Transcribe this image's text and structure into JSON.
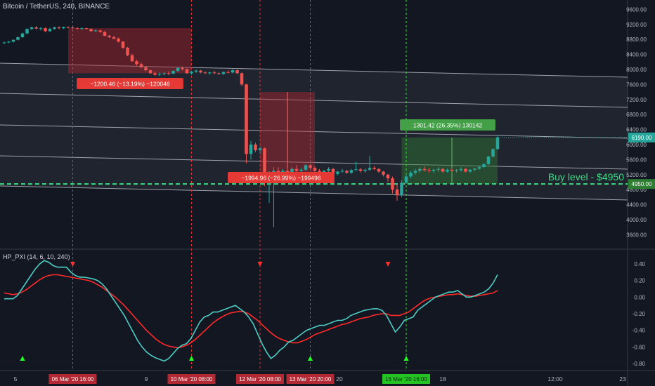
{
  "header": {
    "title": "Bitcoin / TetherUS, 240, BINANCE"
  },
  "indicator": {
    "label": "HP_PXI (14, 6, 10, 240)"
  },
  "price_axis": {
    "ticks": [
      "9600.00",
      "9200.00",
      "8800.00",
      "8400.00",
      "8000.00",
      "7600.00",
      "7200.00",
      "6800.00",
      "6400.00",
      "6000.00",
      "5600.00",
      "5200.00",
      "4800.00",
      "4400.00",
      "4000.00",
      "3600.00"
    ],
    "current_label": "6190.00",
    "buy_label": "4950.00"
  },
  "osc_axis": {
    "ticks": [
      "0.40",
      "0.20",
      "0.00",
      "-0.20",
      "-0.40",
      "-0.60",
      "-0.80"
    ]
  },
  "time_axis": {
    "ticks": [
      "5",
      "9",
      "20",
      "18",
      "12:00",
      "23"
    ],
    "markers": [
      {
        "label": "06 Mar '20   16:00",
        "color": "#b22833"
      },
      {
        "label": "10 Mar '20   08:00",
        "color": "#b22833"
      },
      {
        "label": "12 Mar '20   08:00",
        "color": "#b22833"
      },
      {
        "label": "13 Mar '20   20:00",
        "color": "#b22833"
      },
      {
        "label": "16 Mar '20   16:00",
        "color": "#22c322"
      }
    ]
  },
  "annotations": {
    "drop1": "−1200.46 (−13.19%) −120046",
    "drop2": "−1994.96 (−26.99%) −199496",
    "rise": "1301.42 (26.35%) 130142",
    "buy_level": "Buy level - $4950"
  },
  "colors": {
    "background": "#131722",
    "up": "#26a69a",
    "down": "#ef5350",
    "green_signal": "#22ff22",
    "red_signal": "#ff3030",
    "osc_fast": "#4ecdc4",
    "osc_slow": "#ff2a2a"
  },
  "chart_data": [
    {
      "type": "candlestick",
      "title": "Bitcoin / TetherUS, 240, BINANCE",
      "ylim": [
        3400,
        9800
      ],
      "ohlc": [
        [
          8710,
          8740,
          8680,
          8720
        ],
        [
          8720,
          8760,
          8700,
          8740
        ],
        [
          8740,
          8800,
          8720,
          8790
        ],
        [
          8790,
          8880,
          8770,
          8860
        ],
        [
          8860,
          8980,
          8840,
          8960
        ],
        [
          8960,
          9090,
          8940,
          9080
        ],
        [
          9080,
          9140,
          9050,
          9120
        ],
        [
          9120,
          9160,
          9060,
          9090
        ],
        [
          9090,
          9130,
          9040,
          9100
        ],
        [
          9100,
          9120,
          9000,
          9020
        ],
        [
          9020,
          9110,
          9000,
          9080
        ],
        [
          9080,
          9140,
          9060,
          9120
        ],
        [
          9120,
          9150,
          9070,
          9100
        ],
        [
          9100,
          9140,
          9080,
          9130
        ],
        [
          9130,
          9150,
          9100,
          9120
        ],
        [
          9120,
          9140,
          9080,
          9100
        ],
        [
          9100,
          9130,
          9070,
          9090
        ],
        [
          9090,
          9120,
          9060,
          9100
        ],
        [
          9100,
          9110,
          9060,
          9080
        ],
        [
          9080,
          9090,
          9000,
          9020
        ],
        [
          9020,
          9060,
          9000,
          9040
        ],
        [
          9040,
          9060,
          8980,
          9000
        ],
        [
          9000,
          9020,
          8880,
          8900
        ],
        [
          8900,
          8920,
          8840,
          8860
        ],
        [
          8860,
          8900,
          8800,
          8820
        ],
        [
          8820,
          8850,
          8720,
          8740
        ],
        [
          8740,
          8760,
          8550,
          8580
        ],
        [
          8580,
          8600,
          8350,
          8380
        ],
        [
          8380,
          8420,
          8200,
          8220
        ],
        [
          8220,
          8260,
          8100,
          8140
        ],
        [
          8140,
          8190,
          8040,
          8060
        ],
        [
          8060,
          8090,
          7950,
          7980
        ],
        [
          7980,
          8000,
          7880,
          7900
        ],
        [
          7900,
          7950,
          7830,
          7860
        ],
        [
          7860,
          7920,
          7820,
          7880
        ],
        [
          7880,
          7930,
          7840,
          7900
        ],
        [
          7900,
          7950,
          7850,
          7890
        ],
        [
          7890,
          7980,
          7870,
          7960
        ],
        [
          7960,
          8060,
          7940,
          8040
        ],
        [
          8040,
          8080,
          7980,
          8010
        ],
        [
          8010,
          8030,
          7880,
          7900
        ],
        [
          7900,
          7960,
          7860,
          7940
        ],
        [
          7940,
          8000,
          7910,
          7970
        ],
        [
          7970,
          7990,
          7900,
          7920
        ],
        [
          7920,
          7950,
          7880,
          7900
        ],
        [
          7900,
          7940,
          7860,
          7920
        ],
        [
          7920,
          7960,
          7880,
          7900
        ],
        [
          7900,
          7920,
          7860,
          7880
        ],
        [
          7880,
          7950,
          7860,
          7930
        ],
        [
          7930,
          7970,
          7900,
          7920
        ],
        [
          7920,
          8000,
          7900,
          7980
        ],
        [
          7980,
          8000,
          7880,
          7900
        ],
        [
          7900,
          7920,
          7560,
          7600
        ],
        [
          7600,
          7620,
          5500,
          5750
        ],
        [
          5750,
          6100,
          5600,
          6000
        ],
        [
          6000,
          6050,
          5800,
          5850
        ],
        [
          5850,
          5950,
          5750,
          5900
        ],
        [
          5900,
          5920,
          4900,
          5050
        ],
        [
          5050,
          5300,
          4450,
          5200
        ],
        [
          5200,
          5400,
          3800,
          5300
        ],
        [
          5300,
          5400,
          5100,
          5200
        ],
        [
          5200,
          5350,
          5150,
          5300
        ],
        [
          5300,
          5380,
          5200,
          5250
        ],
        [
          5250,
          5400,
          5200,
          5350
        ],
        [
          5350,
          5450,
          5250,
          5300
        ],
        [
          5300,
          5380,
          5220,
          5330
        ],
        [
          5330,
          5480,
          5300,
          5450
        ],
        [
          5450,
          5480,
          5350,
          5380
        ],
        [
          5380,
          5420,
          5250,
          5300
        ],
        [
          5300,
          5350,
          5200,
          5250
        ],
        [
          5250,
          5330,
          5180,
          5300
        ],
        [
          5300,
          5400,
          5260,
          5350
        ],
        [
          5350,
          5380,
          5200,
          5220
        ],
        [
          5220,
          5300,
          5180,
          5280
        ],
        [
          5280,
          5350,
          5250,
          5300
        ],
        [
          5300,
          5330,
          5220,
          5250
        ],
        [
          5250,
          5350,
          5220,
          5320
        ],
        [
          5320,
          5550,
          5300,
          5340
        ],
        [
          5340,
          5380,
          5260,
          5300
        ],
        [
          5300,
          5360,
          5250,
          5330
        ],
        [
          5330,
          5700,
          5300,
          5380
        ],
        [
          5380,
          5420,
          5320,
          5350
        ],
        [
          5350,
          5370,
          5250,
          5280
        ],
        [
          5280,
          5300,
          5150,
          5200
        ],
        [
          5200,
          5220,
          5000,
          5100
        ],
        [
          5100,
          5150,
          4700,
          4800
        ],
        [
          4800,
          4950,
          4500,
          4650
        ],
        [
          4650,
          5050,
          4600,
          4980
        ],
        [
          4980,
          5200,
          4960,
          5150
        ],
        [
          5150,
          5300,
          5100,
          5250
        ],
        [
          5250,
          5350,
          5200,
          5300
        ],
        [
          5300,
          5400,
          5250,
          5350
        ],
        [
          5350,
          5420,
          5280,
          5320
        ],
        [
          5320,
          5380,
          5250,
          5300
        ],
        [
          5300,
          5350,
          5240,
          5330
        ],
        [
          5330,
          5400,
          5280,
          5350
        ],
        [
          5350,
          5380,
          5250,
          5280
        ],
        [
          5280,
          5360,
          5250,
          5330
        ],
        [
          5330,
          5380,
          5280,
          5300
        ],
        [
          5300,
          5350,
          5260,
          5320
        ],
        [
          5320,
          5400,
          5280,
          5350
        ],
        [
          5350,
          5380,
          5260,
          5280
        ],
        [
          5280,
          5350,
          5250,
          5330
        ],
        [
          5330,
          5380,
          5290,
          5360
        ],
        [
          5360,
          5420,
          5330,
          5400
        ],
        [
          5400,
          5500,
          5380,
          5480
        ],
        [
          5480,
          5700,
          5460,
          5680
        ],
        [
          5680,
          5900,
          5660,
          5880
        ],
        [
          5880,
          6250,
          5860,
          6190
        ]
      ]
    },
    {
      "type": "line",
      "title": "HP_PXI (14, 6, 10, 240)",
      "ylim": [
        -0.88,
        0.5
      ],
      "series": [
        {
          "values": [
            -0.02,
            -0.02,
            -0.02,
            0.02,
            0.1,
            0.18,
            0.26,
            0.34,
            0.4,
            0.44,
            0.42,
            0.38,
            0.36,
            0.36,
            0.36,
            0.3,
            0.26,
            0.24,
            0.24,
            0.23,
            0.22,
            0.2,
            0.16,
            0.1,
            0.02,
            -0.06,
            -0.14,
            -0.22,
            -0.32,
            -0.42,
            -0.52,
            -0.6,
            -0.66,
            -0.7,
            -0.73,
            -0.75,
            -0.77,
            -0.74,
            -0.68,
            -0.62,
            -0.58,
            -0.56,
            -0.5,
            -0.4,
            -0.3,
            -0.24,
            -0.22,
            -0.18,
            -0.18,
            -0.16,
            -0.14,
            -0.12,
            -0.1,
            -0.14,
            -0.18,
            -0.24,
            -0.32,
            -0.44,
            -0.56,
            -0.66,
            -0.74,
            -0.7,
            -0.64,
            -0.6,
            -0.54,
            -0.52,
            -0.48,
            -0.44,
            -0.4,
            -0.38,
            -0.36,
            -0.34,
            -0.34,
            -0.32,
            -0.3,
            -0.28,
            -0.28,
            -0.26,
            -0.22,
            -0.2,
            -0.18,
            -0.16,
            -0.15,
            -0.14,
            -0.14,
            -0.16,
            -0.22,
            -0.32,
            -0.42,
            -0.36,
            -0.28,
            -0.26,
            -0.24,
            -0.16,
            -0.12,
            -0.08,
            -0.04,
            0.0,
            0.02,
            0.04,
            0.06,
            0.06,
            0.08,
            0.04,
            0.0,
            0.0,
            0.02,
            0.04,
            0.06,
            0.1,
            0.17,
            0.27
          ]
        },
        {
          "values": [
            0.05,
            0.04,
            0.03,
            0.04,
            0.06,
            0.09,
            0.13,
            0.17,
            0.21,
            0.24,
            0.26,
            0.27,
            0.27,
            0.26,
            0.25,
            0.24,
            0.23,
            0.22,
            0.21,
            0.2,
            0.18,
            0.15,
            0.12,
            0.08,
            0.04,
            0.0,
            -0.05,
            -0.1,
            -0.16,
            -0.22,
            -0.28,
            -0.34,
            -0.4,
            -0.45,
            -0.5,
            -0.54,
            -0.57,
            -0.59,
            -0.6,
            -0.61,
            -0.6,
            -0.58,
            -0.55,
            -0.51,
            -0.46,
            -0.41,
            -0.36,
            -0.31,
            -0.27,
            -0.24,
            -0.21,
            -0.19,
            -0.18,
            -0.17,
            -0.18,
            -0.2,
            -0.24,
            -0.28,
            -0.33,
            -0.38,
            -0.43,
            -0.47,
            -0.5,
            -0.52,
            -0.54,
            -0.55,
            -0.55,
            -0.53,
            -0.51,
            -0.48,
            -0.45,
            -0.43,
            -0.41,
            -0.39,
            -0.37,
            -0.35,
            -0.33,
            -0.32,
            -0.3,
            -0.28,
            -0.26,
            -0.25,
            -0.24,
            -0.22,
            -0.21,
            -0.2,
            -0.2,
            -0.22,
            -0.22,
            -0.22,
            -0.2,
            -0.18,
            -0.14,
            -0.1,
            -0.06,
            -0.03,
            -0.01,
            0.0,
            0.01,
            0.02,
            0.03,
            0.03,
            0.04,
            0.03,
            0.02,
            0.01,
            0.01,
            0.02,
            0.03,
            0.04,
            0.05,
            0.08
          ]
        }
      ]
    }
  ]
}
